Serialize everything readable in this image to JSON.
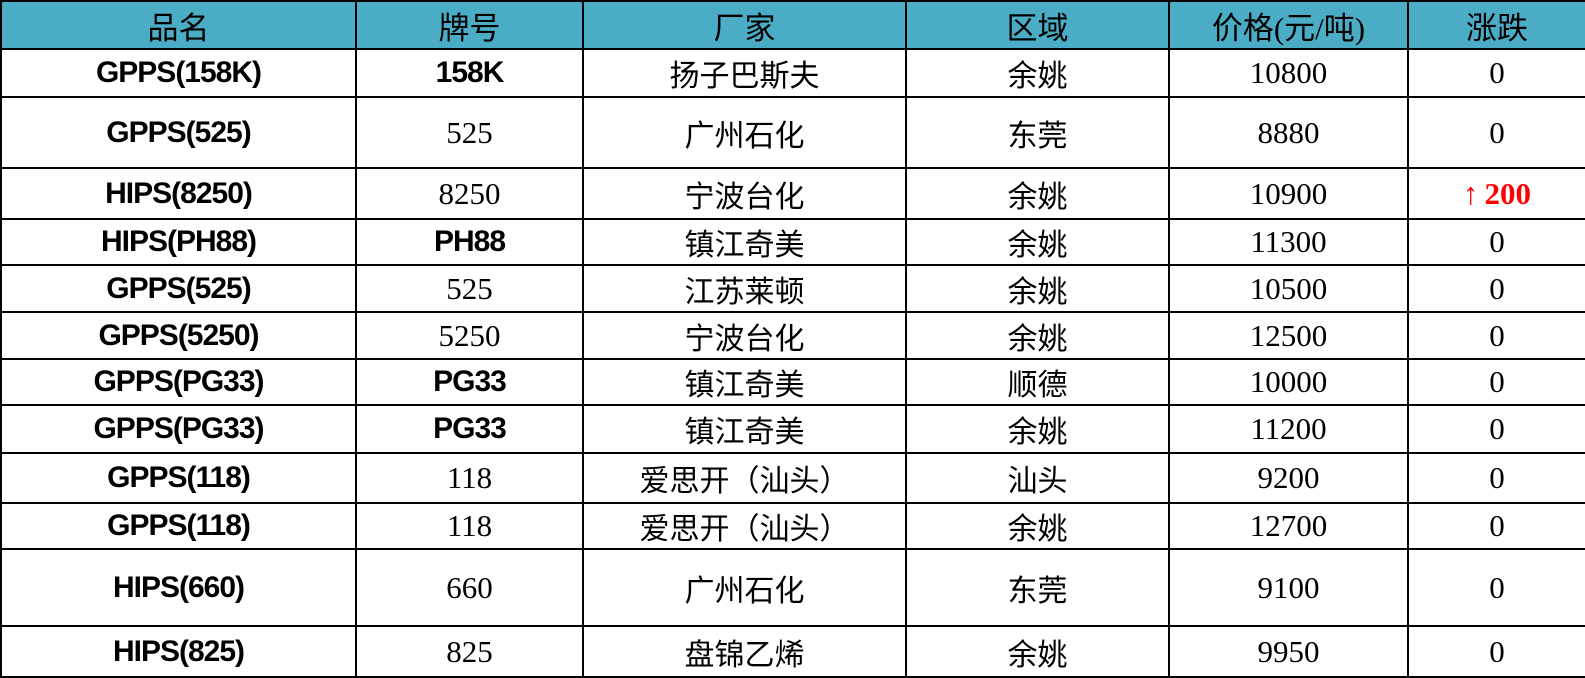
{
  "table": {
    "columns": [
      "品名",
      "牌号",
      "厂家",
      "区域",
      "价格(元/吨)",
      "涨跌"
    ],
    "rows": [
      {
        "product": "GPPS(158K)",
        "grade": "158K",
        "manufacturer": "扬子巴斯夫",
        "region": "余姚",
        "price": "10800",
        "change": "0"
      },
      {
        "product": "GPPS(525)",
        "grade": "525",
        "manufacturer": "广州石化",
        "region": "东莞",
        "price": "8880",
        "change": "0"
      },
      {
        "product": "HIPS(8250)",
        "grade": "8250",
        "manufacturer": "宁波台化",
        "region": "余姚",
        "price": "10900",
        "change": "↑200"
      },
      {
        "product": "HIPS(PH88)",
        "grade": "PH88",
        "manufacturer": "镇江奇美",
        "region": "余姚",
        "price": "11300",
        "change": "0"
      },
      {
        "product": "GPPS(525)",
        "grade": "525",
        "manufacturer": "江苏莱顿",
        "region": "余姚",
        "price": "10500",
        "change": "0"
      },
      {
        "product": "GPPS(5250)",
        "grade": "5250",
        "manufacturer": "宁波台化",
        "region": "余姚",
        "price": "12500",
        "change": "0"
      },
      {
        "product": "GPPS(PG33)",
        "grade": "PG33",
        "manufacturer": "镇江奇美",
        "region": "顺德",
        "price": "10000",
        "change": "0"
      },
      {
        "product": "GPPS(PG33)",
        "grade": "PG33",
        "manufacturer": "镇江奇美",
        "region": "余姚",
        "price": "11200",
        "change": "0"
      },
      {
        "product": "GPPS(118)",
        "grade": "118",
        "manufacturer": "爱思开（汕头）",
        "region": "汕头",
        "price": "9200",
        "change": "0"
      },
      {
        "product": "GPPS(118)",
        "grade": "118",
        "manufacturer": "爱思开（汕头）",
        "region": "余姚",
        "price": "12700",
        "change": "0"
      },
      {
        "product": "HIPS(660)",
        "grade": "660",
        "manufacturer": "广州石化",
        "region": "东莞",
        "price": "9100",
        "change": "0"
      },
      {
        "product": "HIPS(825)",
        "grade": "825",
        "manufacturer": "盘锦乙烯",
        "region": "余姚",
        "price": "9950",
        "change": "0"
      }
    ]
  },
  "icons": {
    "up_arrow": "↑"
  },
  "colors": {
    "header_bg": "#4BACC6",
    "header_text": "#000000",
    "up": "#FF0000",
    "border": "#000000"
  }
}
